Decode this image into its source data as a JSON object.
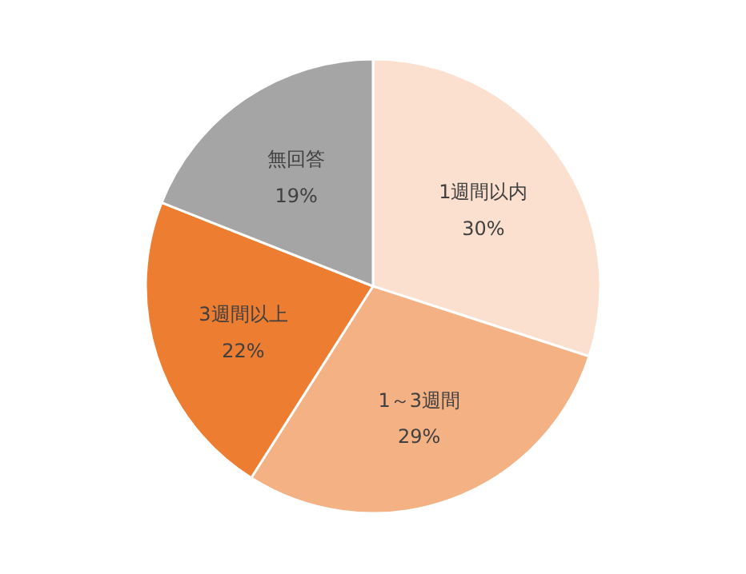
{
  "chart_data": {
    "type": "pie",
    "categories": [
      "1週間以内",
      "1～3週間",
      "3週間以上",
      "無回答"
    ],
    "values": [
      30,
      29,
      22,
      19
    ],
    "value_labels": [
      "30%",
      "29%",
      "22%",
      "19%"
    ],
    "colors": [
      "#fbe0cf",
      "#f4b183",
      "#ed7d31",
      "#a5a5a5"
    ],
    "legend": false
  }
}
